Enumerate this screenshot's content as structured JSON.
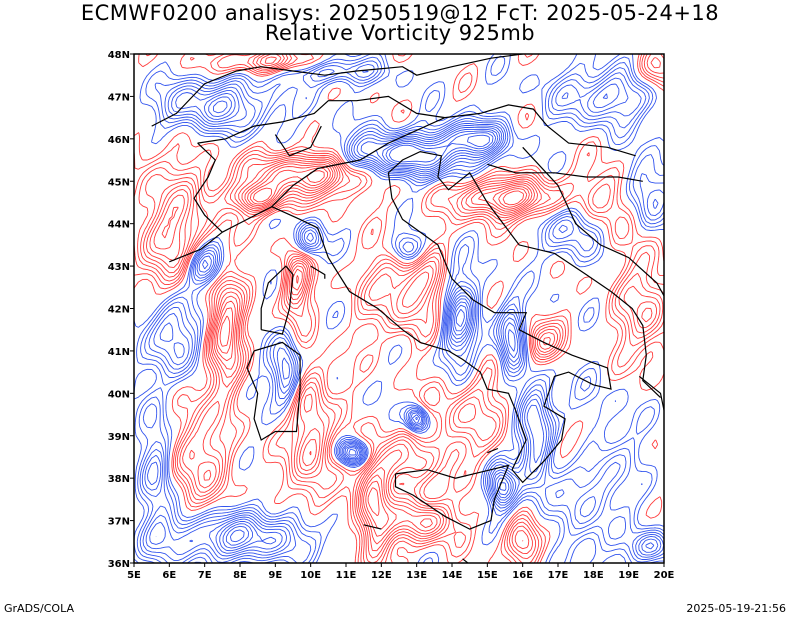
{
  "title_line1": "ECMWF0200 analisys: 20250519@12 FcT: 2025-05-24+18",
  "title_line2": "Relative Vorticity 925mb",
  "lat_labels": [
    "36N",
    "37N",
    "38N",
    "39N",
    "40N",
    "41N",
    "42N",
    "43N",
    "44N",
    "45N",
    "46N",
    "47N",
    "48N"
  ],
  "lon_labels": [
    "5E",
    "6E",
    "7E",
    "8E",
    "9E",
    "10E",
    "11E",
    "12E",
    "13E",
    "14E",
    "15E",
    "16E",
    "17E",
    "18E",
    "19E",
    "20E"
  ],
  "colors": {
    "positive": "#ff3b3b",
    "negative": "#3355ee",
    "coast": "#000000"
  },
  "footer_left": "GrADS/COLA",
  "footer_right": "2025-05-19-21:56"
}
